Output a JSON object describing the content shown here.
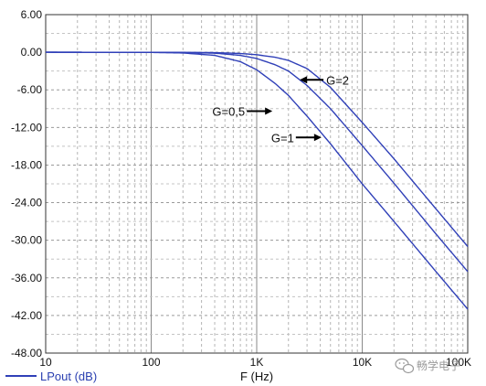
{
  "chart_data": {
    "type": "line",
    "x_scale": "log",
    "xlim": [
      10,
      100000
    ],
    "ylim": [
      -48,
      6
    ],
    "grid": true,
    "legend_placement": "bottom-left",
    "xlabel": "F (Hz)",
    "ylabel": "",
    "title": "",
    "x_tick_labels": [
      {
        "value": 10,
        "label": "10"
      },
      {
        "value": 100,
        "label": "100"
      },
      {
        "value": 1000,
        "label": "1K"
      },
      {
        "value": 10000,
        "label": "10K"
      },
      {
        "value": 100000,
        "label": "100K"
      }
    ],
    "y_tick_labels": [
      {
        "value": 6,
        "label": "6.00"
      },
      {
        "value": 0,
        "label": "0.00"
      },
      {
        "value": -6,
        "label": "-6.00"
      },
      {
        "value": -12,
        "label": "-12.00"
      },
      {
        "value": -18,
        "label": "-18.00"
      },
      {
        "value": -24,
        "label": "-24.00"
      },
      {
        "value": -30,
        "label": "-30.00"
      },
      {
        "value": -36,
        "label": "-36.00"
      },
      {
        "value": -42,
        "label": "-42.00"
      },
      {
        "value": -48,
        "label": "-48.00"
      }
    ],
    "legend": [
      {
        "label": "LPout (dB)",
        "color": "#3040b8"
      }
    ],
    "series": [
      {
        "name": "",
        "color": "#3040b8",
        "x": [
          10,
          100,
          200,
          400,
          700,
          1000,
          1500,
          2000,
          3000,
          5000,
          10000,
          20000,
          50000,
          100000
        ],
        "y": [
          0,
          -0.03,
          -0.12,
          -0.5,
          -1.5,
          -2.8,
          -5.0,
          -6.9,
          -10.2,
          -14.6,
          -21.0,
          -27.0,
          -35.0,
          -41.0
        ]
      },
      {
        "name": "",
        "color": "#3040b8",
        "x": [
          10,
          100,
          200,
          400,
          700,
          1000,
          1500,
          2000,
          3000,
          5000,
          10000,
          20000,
          50000,
          100000
        ],
        "y": [
          0,
          -0.01,
          -0.04,
          -0.15,
          -0.5,
          -1.0,
          -2.0,
          -3.0,
          -5.3,
          -9.0,
          -14.9,
          -20.9,
          -29.0,
          -35.0
        ]
      },
      {
        "name": "",
        "color": "#3040b8",
        "x": [
          10,
          100,
          200,
          400,
          700,
          1000,
          1500,
          2000,
          3000,
          5000,
          10000,
          20000,
          50000,
          100000
        ],
        "y": [
          0,
          -0.01,
          -0.02,
          -0.06,
          -0.2,
          -0.4,
          -0.8,
          -1.3,
          -2.6,
          -5.6,
          -11.2,
          -17.0,
          -25.0,
          -31.0
        ]
      }
    ],
    "annotations": [
      {
        "text": "G=2",
        "arrow": "left",
        "x": 3000,
        "y": -4.4
      },
      {
        "text": "G=0,5",
        "arrow": "right",
        "x": 1200,
        "y": -9.4
      },
      {
        "text": "G=1",
        "arrow": "right",
        "x": 3500,
        "y": -13.6
      }
    ]
  },
  "watermark": {
    "text": "畅学电子",
    "icon": "wechat-icon"
  }
}
